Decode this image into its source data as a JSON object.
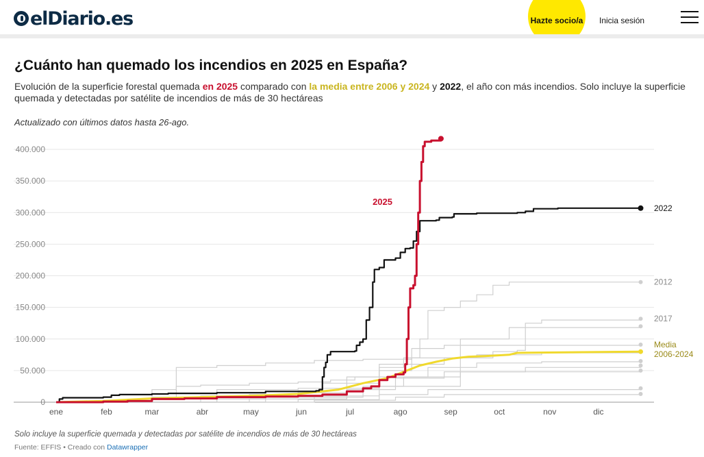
{
  "header": {
    "logo_text": "elDiario.es",
    "socio_label": "Hazte socio/a",
    "login_label": "Inicia sesión"
  },
  "article": {
    "title": "¿Cuánto han quemado los incendios en 2025 en España?",
    "subtitle": {
      "part1": "Evolución de la superficie forestal quemada ",
      "hl_2025": "en 2025",
      "part2": " comparado con ",
      "hl_media": "la media entre 2006 y 2024",
      "part3": " y ",
      "hl_2022": "2022",
      "part4": ", el año con más incendios. Solo incluye la superficie quemada y detectadas por satélite de incendios de más de 30 hectáreas"
    },
    "updated": "Actualizado con últimos datos hasta 26-ago.",
    "note": "Solo incluye la superficie quemada y detectadas por satélite de incendios de más de 30 hectáreas",
    "source_prefix": "Fuente: EFFIS • Creado con ",
    "source_link": "Datawrapper"
  },
  "colors": {
    "y2025": "#c8102e",
    "y2022": "#111111",
    "media": "#f0d92e",
    "media_label": "#9a8a18",
    "other": "#cfcfcf",
    "grid": "#e6e6e6",
    "axis_text": "#888888"
  },
  "chart_data": {
    "type": "line",
    "x_unit": "day of year",
    "xlim": [
      1,
      365
    ],
    "ylim": [
      0,
      400000
    ],
    "yticks": [
      0,
      50000,
      100000,
      150000,
      200000,
      250000,
      300000,
      350000,
      400000
    ],
    "ytick_labels": [
      "0",
      "50.000",
      "100.000",
      "150.000",
      "200.000",
      "250.000",
      "300.000",
      "350.000",
      "400.000"
    ],
    "month_ticks": [
      {
        "label": "ene",
        "day": 1
      },
      {
        "label": "feb",
        "day": 32
      },
      {
        "label": "mar",
        "day": 60
      },
      {
        "label": "abr",
        "day": 91
      },
      {
        "label": "may",
        "day": 121
      },
      {
        "label": "jun",
        "day": 152
      },
      {
        "label": "jul",
        "day": 182
      },
      {
        "label": "ago",
        "day": 213
      },
      {
        "label": "sep",
        "day": 244
      },
      {
        "label": "oct",
        "day": 274
      },
      {
        "label": "nov",
        "day": 305
      },
      {
        "label": "dic",
        "day": 335
      }
    ],
    "series_2025": {
      "label": "2025",
      "points": [
        [
          1,
          0
        ],
        [
          30,
          1000
        ],
        [
          45,
          2000
        ],
        [
          60,
          5000
        ],
        [
          80,
          6000
        ],
        [
          100,
          8000
        ],
        [
          130,
          9000
        ],
        [
          150,
          10000
        ],
        [
          165,
          12000
        ],
        [
          180,
          17000
        ],
        [
          190,
          22000
        ],
        [
          195,
          25000
        ],
        [
          200,
          35000
        ],
        [
          205,
          40000
        ],
        [
          210,
          44000
        ],
        [
          215,
          47000
        ],
        [
          216,
          60000
        ],
        [
          217,
          100000
        ],
        [
          218,
          150000
        ],
        [
          219,
          180000
        ],
        [
          221,
          185000
        ],
        [
          222,
          200000
        ],
        [
          223,
          250000
        ],
        [
          224,
          300000
        ],
        [
          225,
          350000
        ],
        [
          226,
          380000
        ],
        [
          227,
          405000
        ],
        [
          228,
          412000
        ],
        [
          232,
          414000
        ],
        [
          238,
          417000
        ]
      ]
    },
    "series_2022": {
      "label": "2022",
      "points": [
        [
          1,
          0
        ],
        [
          3,
          5000
        ],
        [
          5,
          7000
        ],
        [
          30,
          8000
        ],
        [
          35,
          11000
        ],
        [
          40,
          12000
        ],
        [
          60,
          13000
        ],
        [
          70,
          14000
        ],
        [
          100,
          15000
        ],
        [
          130,
          17000
        ],
        [
          160,
          17000
        ],
        [
          161,
          18000
        ],
        [
          163,
          20000
        ],
        [
          165,
          40000
        ],
        [
          166,
          55000
        ],
        [
          167,
          63000
        ],
        [
          168,
          75000
        ],
        [
          170,
          80000
        ],
        [
          185,
          81000
        ],
        [
          186,
          90000
        ],
        [
          188,
          95000
        ],
        [
          190,
          100000
        ],
        [
          192,
          130000
        ],
        [
          194,
          150000
        ],
        [
          196,
          190000
        ],
        [
          197,
          210000
        ],
        [
          200,
          213000
        ],
        [
          203,
          225000
        ],
        [
          210,
          228000
        ],
        [
          213,
          237000
        ],
        [
          216,
          243000
        ],
        [
          219,
          244000
        ],
        [
          221,
          255000
        ],
        [
          223,
          270000
        ],
        [
          225,
          287000
        ],
        [
          235,
          288000
        ],
        [
          237,
          292000
        ],
        [
          245,
          293000
        ],
        [
          246,
          298000
        ],
        [
          260,
          299000
        ],
        [
          285,
          300000
        ],
        [
          290,
          302000
        ],
        [
          295,
          306000
        ],
        [
          310,
          307000
        ],
        [
          361,
          307000
        ]
      ]
    },
    "series_media": {
      "label": "Media\n2006-2024",
      "points": [
        [
          1,
          0
        ],
        [
          30,
          2000
        ],
        [
          60,
          6000
        ],
        [
          90,
          8000
        ],
        [
          120,
          10000
        ],
        [
          150,
          13000
        ],
        [
          175,
          20000
        ],
        [
          190,
          30000
        ],
        [
          205,
          38000
        ],
        [
          215,
          48000
        ],
        [
          225,
          58000
        ],
        [
          235,
          64000
        ],
        [
          245,
          69000
        ],
        [
          255,
          72000
        ],
        [
          265,
          73000
        ],
        [
          280,
          75000
        ],
        [
          285,
          78000
        ],
        [
          320,
          79000
        ],
        [
          361,
          80000
        ]
      ]
    },
    "other_years": [
      {
        "label": "2012",
        "points": [
          [
            1,
            0
          ],
          [
            60,
            8000
          ],
          [
            75,
            25000
          ],
          [
            90,
            27000
          ],
          [
            120,
            30000
          ],
          [
            150,
            32000
          ],
          [
            170,
            35000
          ],
          [
            185,
            40000
          ],
          [
            200,
            55000
          ],
          [
            215,
            70000
          ],
          [
            225,
            100000
          ],
          [
            230,
            145000
          ],
          [
            240,
            150000
          ],
          [
            250,
            160000
          ],
          [
            260,
            170000
          ],
          [
            270,
            185000
          ],
          [
            280,
            190000
          ],
          [
            361,
            190000
          ]
        ]
      },
      {
        "label": "2017",
        "points": [
          [
            1,
            0
          ],
          [
            60,
            5000
          ],
          [
            90,
            8000
          ],
          [
            120,
            12000
          ],
          [
            150,
            18000
          ],
          [
            165,
            30000
          ],
          [
            180,
            40000
          ],
          [
            200,
            50000
          ],
          [
            220,
            60000
          ],
          [
            240,
            70000
          ],
          [
            270,
            80000
          ],
          [
            285,
            82000
          ],
          [
            290,
            125000
          ],
          [
            300,
            130000
          ],
          [
            361,
            132000
          ]
        ]
      },
      {
        "label": "",
        "points": [
          [
            1,
            0
          ],
          [
            60,
            20000
          ],
          [
            75,
            55000
          ],
          [
            100,
            58000
          ],
          [
            130,
            62000
          ],
          [
            160,
            66000
          ],
          [
            190,
            68000
          ],
          [
            220,
            70000
          ],
          [
            260,
            75000
          ],
          [
            300,
            78000
          ],
          [
            361,
            80000
          ]
        ]
      },
      {
        "label": "",
        "points": [
          [
            1,
            0
          ],
          [
            90,
            10000
          ],
          [
            150,
            15000
          ],
          [
            180,
            30000
          ],
          [
            200,
            60000
          ],
          [
            220,
            85000
          ],
          [
            240,
            90000
          ],
          [
            300,
            90000
          ],
          [
            361,
            91000
          ]
        ]
      },
      {
        "label": "",
        "points": [
          [
            1,
            0
          ],
          [
            100,
            5000
          ],
          [
            160,
            10000
          ],
          [
            200,
            40000
          ],
          [
            230,
            55000
          ],
          [
            260,
            62000
          ],
          [
            300,
            64000
          ],
          [
            361,
            65000
          ]
        ]
      },
      {
        "label": "",
        "points": [
          [
            1,
            0
          ],
          [
            120,
            5000
          ],
          [
            180,
            20000
          ],
          [
            210,
            38000
          ],
          [
            240,
            48000
          ],
          [
            290,
            55000
          ],
          [
            361,
            58000
          ]
        ]
      },
      {
        "label": "",
        "points": [
          [
            1,
            0
          ],
          [
            130,
            8000
          ],
          [
            190,
            25000
          ],
          [
            215,
            40000
          ],
          [
            250,
            48000
          ],
          [
            361,
            50000
          ]
        ]
      },
      {
        "label": "",
        "points": [
          [
            1,
            0
          ],
          [
            150,
            4000
          ],
          [
            200,
            12000
          ],
          [
            230,
            20000
          ],
          [
            361,
            22000
          ]
        ]
      },
      {
        "label": "",
        "points": [
          [
            1,
            0
          ],
          [
            160,
            3000
          ],
          [
            210,
            8000
          ],
          [
            240,
            12000
          ],
          [
            361,
            13000
          ]
        ]
      },
      {
        "label": "",
        "points": [
          [
            1,
            0
          ],
          [
            100,
            20000
          ],
          [
            150,
            22000
          ],
          [
            200,
            25000
          ],
          [
            250,
            100000
          ],
          [
            280,
            118000
          ],
          [
            361,
            120000
          ]
        ]
      }
    ]
  }
}
